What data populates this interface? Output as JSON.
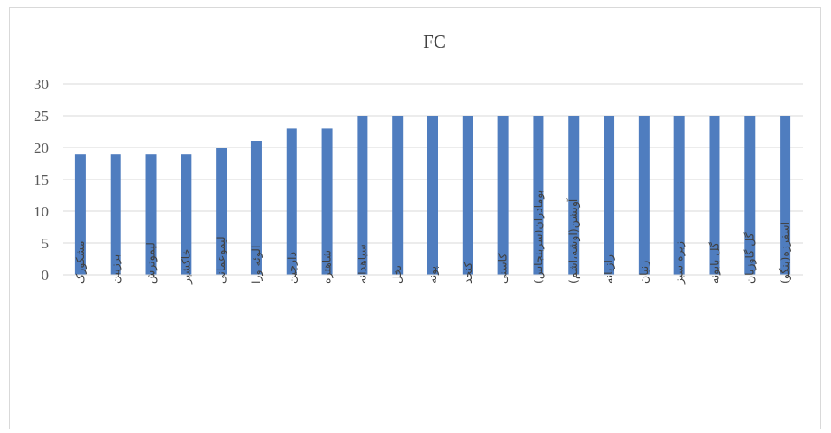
{
  "chart_data": {
    "type": "bar",
    "title": "FC",
    "xlabel": "",
    "ylabel": "",
    "ylim": [
      0,
      30
    ],
    "yticks": [
      0,
      5,
      10,
      15,
      20,
      25,
      30
    ],
    "grid": true,
    "legend": "none",
    "bar_color": "#4f7dbf",
    "grid_color": "#d9d9d9",
    "categories": [
      "مشکورک",
      "برزیبن",
      "لیموترش",
      "خاکشیر",
      "لیموعمانی",
      "الوئه ورا",
      "دارچین",
      "شاهتره",
      "سیاهدانه",
      "نخل",
      "پونه",
      "کنجد",
      "کاسنی",
      "بومادران(سربنجاس)",
      "آویشن(اوشه،اشم)",
      "رازیانه",
      "زنیان",
      "زیره سبز",
      "گل بابونه",
      "گل گاوزبان",
      "اسفرزه(بنگو)"
    ],
    "values": [
      19,
      19,
      19,
      19,
      20,
      21,
      23,
      23,
      25,
      25,
      25,
      25,
      25,
      25,
      25,
      25,
      25,
      25,
      25,
      25,
      25
    ]
  }
}
